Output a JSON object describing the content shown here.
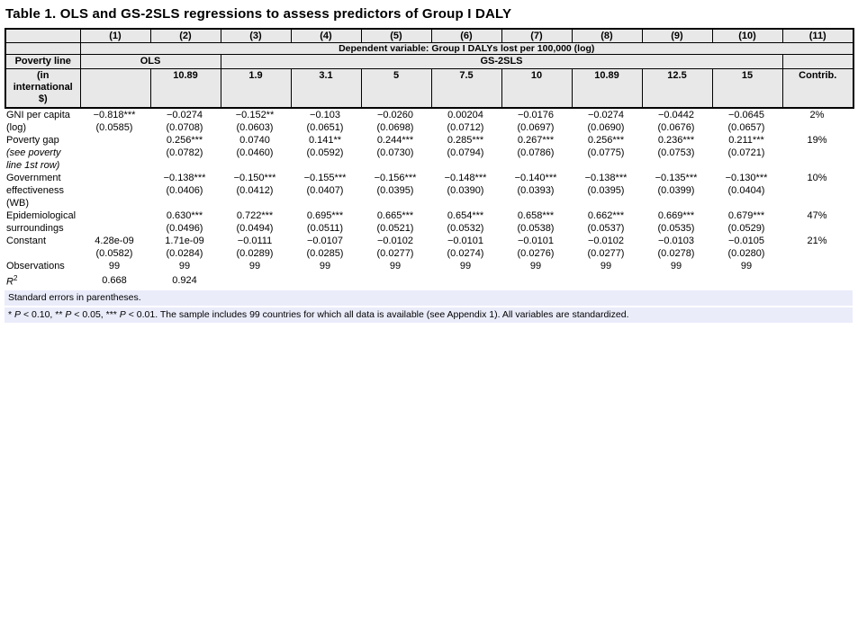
{
  "title": "Table 1. OLS and GS-2SLS regressions to assess predictors of Group I DALY",
  "header": {
    "col_numbers": [
      "(1)",
      "(2)",
      "(3)",
      "(4)",
      "(5)",
      "(6)",
      "(7)",
      "(8)",
      "(9)",
      "(10)",
      "(11)"
    ],
    "dependent_variable": "Dependent variable: Group I DALYs lost per 100,000 (log)",
    "poverty_line_label": "Poverty line",
    "poverty_line_sublabel": "(in international $)",
    "methods": [
      {
        "label": "OLS",
        "span": 2
      },
      {
        "label": "GS-2SLS",
        "span": 8
      }
    ],
    "poverty_lines": [
      "",
      "10.89",
      "1.9",
      "3.1",
      "5",
      "7.5",
      "10",
      "10.89",
      "12.5",
      "15"
    ],
    "contrib_label": "Contrib."
  },
  "body": {
    "rows": [
      {
        "label": "GNI per capita",
        "cells": [
          "−0.818***",
          "−0.0274",
          "−0.152**",
          "−0.103",
          "−0.0260",
          "0.00204",
          "−0.0176",
          "−0.0274",
          "−0.0442",
          "−0.0645",
          "2%"
        ]
      },
      {
        "label": "(log)",
        "cells": [
          "(0.0585)",
          "(0.0708)",
          "(0.0603)",
          "(0.0651)",
          "(0.0698)",
          "(0.0712)",
          "(0.0697)",
          "(0.0690)",
          "(0.0676)",
          "(0.0657)",
          ""
        ]
      },
      {
        "label": "Poverty gap",
        "cells": [
          "",
          "0.256***",
          "0.0740",
          "0.141**",
          "0.244***",
          "0.285***",
          "0.267***",
          "0.256***",
          "0.236***",
          "0.211***",
          "19%"
        ]
      },
      {
        "label": "(see poverty",
        "italic": true,
        "cells": [
          "",
          "(0.0782)",
          "(0.0460)",
          "(0.0592)",
          "(0.0730)",
          "(0.0794)",
          "(0.0786)",
          "(0.0775)",
          "(0.0753)",
          "(0.0721)",
          ""
        ]
      },
      {
        "label": "line 1st row)",
        "italic": true,
        "cells": [
          "",
          "",
          "",
          "",
          "",
          "",
          "",
          "",
          "",
          "",
          ""
        ]
      },
      {
        "label": "Government",
        "cells": [
          "",
          "−0.138***",
          "−0.150***",
          "−0.155***",
          "−0.156***",
          "−0.148***",
          "−0.140***",
          "−0.138***",
          "−0.135***",
          "−0.130***",
          "10%"
        ]
      },
      {
        "label": "effectiveness",
        "cells": [
          "",
          "(0.0406)",
          "(0.0412)",
          "(0.0407)",
          "(0.0395)",
          "(0.0390)",
          "(0.0393)",
          "(0.0395)",
          "(0.0399)",
          "(0.0404)",
          ""
        ]
      },
      {
        "label": "(WB)",
        "cells": [
          "",
          "",
          "",
          "",
          "",
          "",
          "",
          "",
          "",
          "",
          ""
        ]
      },
      {
        "label": "Epidemiological",
        "cells": [
          "",
          "0.630***",
          "0.722***",
          "0.695***",
          "0.665***",
          "0.654***",
          "0.658***",
          "0.662***",
          "0.669***",
          "0.679***",
          "47%"
        ]
      },
      {
        "label": "surroundings",
        "cells": [
          "",
          "(0.0496)",
          "(0.0494)",
          "(0.0511)",
          "(0.0521)",
          "(0.0532)",
          "(0.0538)",
          "(0.0537)",
          "(0.0535)",
          "(0.0529)",
          ""
        ]
      },
      {
        "label": "Constant",
        "cells": [
          "4.28e-09",
          "1.71e-09",
          "−0.0111",
          "−0.0107",
          "−0.0102",
          "−0.0101",
          "−0.0101",
          "−0.0102",
          "−0.0103",
          "−0.0105",
          "21%"
        ]
      },
      {
        "label": "",
        "cells": [
          "(0.0582)",
          "(0.0284)",
          "(0.0289)",
          "(0.0285)",
          "(0.0277)",
          "(0.0274)",
          "(0.0276)",
          "(0.0277)",
          "(0.0278)",
          "(0.0280)",
          ""
        ]
      },
      {
        "label": "Observations",
        "cells": [
          "99",
          "99",
          "99",
          "99",
          "99",
          "99",
          "99",
          "99",
          "99",
          "99",
          ""
        ]
      },
      {
        "label": "R",
        "sup": "2",
        "cells": [
          "0.668",
          "0.924",
          "",
          "",
          "",
          "",
          "",
          "",
          "",
          "",
          ""
        ]
      }
    ]
  },
  "notes": {
    "line1": "Standard errors in parentheses.",
    "line2_parts": [
      "* ",
      "P",
      " < 0.10, ** ",
      "P",
      " < 0.05, *** ",
      "P",
      " < 0.01. The sample includes 99 countries for which all data is available (see Appendix 1). All variables are standardized."
    ]
  }
}
